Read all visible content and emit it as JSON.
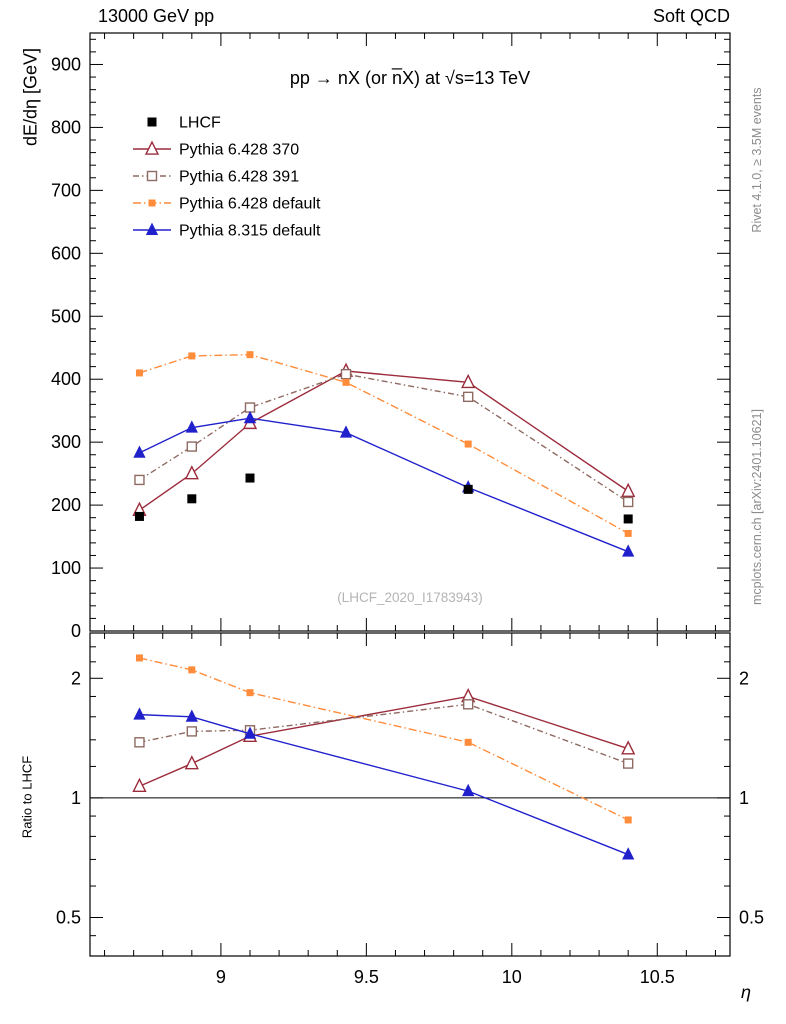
{
  "header": {
    "left": "13000 GeV pp",
    "right": "Soft QCD"
  },
  "side_notes": {
    "top": "Rivet 4.1.0, ≥ 3.5M events",
    "bottom": "mcplots.cern.ch [arXiv:2401.10621]"
  },
  "chart_data": {
    "type": "line",
    "title": "pp → nX (or n̅X) at √s=13 TeV",
    "watermark": "(LHCF_2020_I1783943)",
    "xlabel": "η",
    "ylabel_main": "dE/dη [GeV]",
    "ylabel_ratio": "Ratio to LHCF",
    "x_range": [
      8.55,
      10.75
    ],
    "x_ticks": [
      9,
      9.5,
      10,
      10.5
    ],
    "y_range_main": [
      0,
      950
    ],
    "y_ticks_main": [
      0,
      100,
      200,
      300,
      400,
      500,
      600,
      700,
      800,
      900
    ],
    "ratio_scale": "log",
    "ratio_range": [
      0.4,
      2.6
    ],
    "ratio_ticks": [
      0.5,
      1,
      2
    ],
    "ratio_reference": 1,
    "legend_position": "top-left",
    "series": [
      {
        "name": "LHCF",
        "role": "data",
        "color": "#000000",
        "marker": "square-filled",
        "marker_size": 4.5,
        "line": "none",
        "dash": "",
        "x": [
          8.72,
          8.9,
          9.1,
          9.85,
          10.4
        ],
        "y": [
          182,
          210,
          243,
          225,
          178
        ]
      },
      {
        "name": "Pythia 6.428 370",
        "role": "mc",
        "color": "#9c2c3c",
        "marker": "triangle-open",
        "marker_size": 6,
        "line": "solid",
        "dash": "",
        "x": [
          8.72,
          8.9,
          9.1,
          9.43,
          9.85,
          10.4
        ],
        "y": [
          192,
          250,
          330,
          413,
          395,
          222
        ],
        "ratio_x": [
          8.72,
          8.9,
          9.1,
          9.85,
          10.4
        ],
        "ratio": [
          1.07,
          1.22,
          1.43,
          1.8,
          1.33
        ]
      },
      {
        "name": "Pythia 6.428 391",
        "role": "mc",
        "color": "#8e6a62",
        "marker": "square-open",
        "marker_size": 4.5,
        "line": "dashdot",
        "dash": "6 3 1.5 3",
        "x": [
          8.72,
          8.9,
          9.1,
          9.43,
          9.85,
          10.4
        ],
        "y": [
          240,
          293,
          355,
          408,
          372,
          205
        ],
        "ratio_x": [
          8.72,
          8.9,
          9.1,
          9.85,
          10.4
        ],
        "ratio": [
          1.38,
          1.47,
          1.48,
          1.72,
          1.22
        ]
      },
      {
        "name": "Pythia 6.428 default",
        "role": "mc",
        "color": "#ff8c3a",
        "marker": "square-filled",
        "marker_size": 3.5,
        "line": "dashdot",
        "dash": "8 3 1.5 3",
        "x": [
          8.72,
          8.9,
          9.1,
          9.43,
          9.85,
          10.4
        ],
        "y": [
          410,
          437,
          439,
          395,
          297,
          155
        ],
        "ratio_x": [
          8.72,
          8.9,
          9.1,
          9.85,
          10.4
        ],
        "ratio": [
          2.25,
          2.1,
          1.84,
          1.38,
          0.88
        ]
      },
      {
        "name": "Pythia 8.315 default",
        "role": "mc",
        "color": "#2121cc",
        "marker": "triangle-filled",
        "marker_size": 5,
        "line": "solid",
        "dash": "",
        "x": [
          8.72,
          8.9,
          9.1,
          9.43,
          9.85,
          10.4
        ],
        "y": [
          283,
          323,
          338,
          315,
          228,
          126
        ],
        "ratio_x": [
          8.72,
          8.9,
          9.1,
          9.85,
          10.4
        ],
        "ratio": [
          1.62,
          1.6,
          1.45,
          1.04,
          0.72
        ]
      }
    ]
  }
}
